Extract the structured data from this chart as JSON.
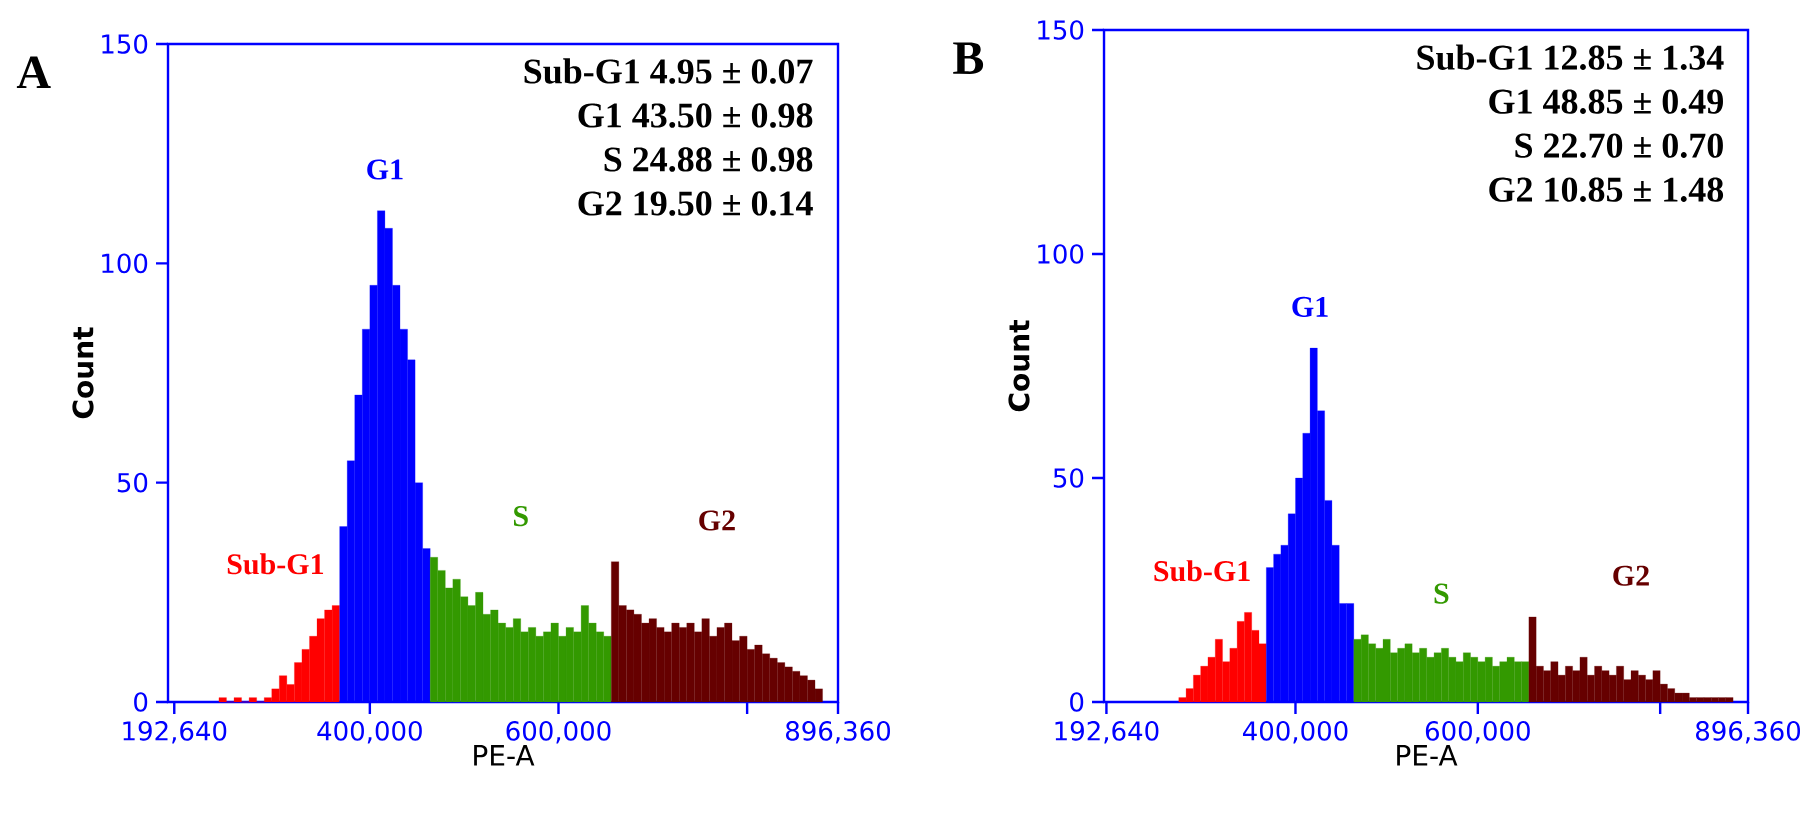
{
  "chart_data": [
    {
      "type": "histogram",
      "title": "A",
      "xlabel": "PE-A",
      "ylabel": "Count",
      "xlim": [
        186000,
        896360
      ],
      "xticks": [
        {
          "value": 192640,
          "label": "192,640"
        },
        {
          "value": 400000,
          "label": "400,000"
        },
        {
          "value": 600000,
          "label": "600,000"
        },
        {
          "value": 800000,
          "label": null
        },
        {
          "value": 896360,
          "label": "896,360"
        }
      ],
      "ylim": [
        0,
        150
      ],
      "yticks": [
        {
          "value": 0,
          "label": "0"
        },
        {
          "value": 50,
          "label": "50"
        },
        {
          "value": 100,
          "label": "100"
        },
        {
          "value": 150,
          "label": "150"
        }
      ],
      "annotations": [
        "Sub-G1",
        "G1",
        "S",
        "G2",
        "Sub-G1 4.95 ± 0.07",
        "G1 43.50 ± 0.98",
        "S 24.88 ± 0.98",
        "G2 19.50 ± 0.14"
      ],
      "bins": [
        240000,
        248000,
        256000,
        264000,
        272000,
        280000,
        288000,
        296000,
        304000,
        312000,
        320000,
        328000,
        336000,
        344000,
        352000,
        360000,
        368000,
        376000,
        384000,
        392000,
        400000,
        408000,
        416000,
        424000,
        432000,
        440000,
        448000,
        456000,
        464000,
        472000,
        480000,
        488000,
        496000,
        504000,
        512000,
        520000,
        528000,
        536000,
        544000,
        552000,
        560000,
        568000,
        576000,
        584000,
        592000,
        600000,
        608000,
        616000,
        624000,
        632000,
        640000,
        648000,
        656000,
        664000,
        672000,
        680000,
        688000,
        696000,
        704000,
        712000,
        720000,
        728000,
        736000,
        744000,
        752000,
        760000,
        768000,
        776000,
        784000,
        792000,
        800000,
        808000,
        816000,
        824000,
        832000,
        840000,
        848000,
        856000,
        864000,
        872000,
        880000
      ],
      "values": [
        1,
        0,
        1,
        0,
        1,
        0,
        1,
        3,
        6,
        4,
        9,
        12,
        15,
        19,
        21,
        22,
        40,
        55,
        70,
        85,
        95,
        112,
        108,
        95,
        85,
        78,
        50,
        35,
        33,
        30,
        26,
        28,
        24,
        22,
        25,
        20,
        21,
        18,
        17,
        19,
        16,
        17,
        15,
        16,
        18,
        15,
        17,
        16,
        22,
        18,
        16,
        15,
        32,
        22,
        21,
        20,
        18,
        19,
        17,
        16,
        18,
        17,
        18,
        16,
        19,
        15,
        17,
        18,
        14,
        15,
        12,
        13,
        11,
        10,
        9,
        8,
        7,
        6,
        5,
        3
      ],
      "colors": [
        "#ff0000",
        "#ff0000",
        "#ff0000",
        "#ff0000",
        "#ff0000",
        "#ff0000",
        "#ff0000",
        "#ff0000",
        "#ff0000",
        "#ff0000",
        "#ff0000",
        "#ff0000",
        "#ff0000",
        "#ff0000",
        "#ff0000",
        "#ff0000",
        "#0000ff",
        "#0000ff",
        "#0000ff",
        "#0000ff",
        "#0000ff",
        "#0000ff",
        "#0000ff",
        "#0000ff",
        "#0000ff",
        "#0000ff",
        "#0000ff",
        "#0000ff",
        "#339900",
        "#339900",
        "#339900",
        "#339900",
        "#339900",
        "#339900",
        "#339900",
        "#339900",
        "#339900",
        "#339900",
        "#339900",
        "#339900",
        "#339900",
        "#339900",
        "#339900",
        "#339900",
        "#339900",
        "#339900",
        "#339900",
        "#339900",
        "#339900",
        "#339900",
        "#339900",
        "#339900",
        "#660000",
        "#660000",
        "#660000",
        "#660000",
        "#660000",
        "#660000",
        "#660000",
        "#660000",
        "#660000",
        "#660000",
        "#660000",
        "#660000",
        "#660000",
        "#660000",
        "#660000",
        "#660000",
        "#660000",
        "#660000",
        "#660000",
        "#660000",
        "#660000",
        "#660000",
        "#660000",
        "#660000",
        "#660000",
        "#660000",
        "#660000",
        "#660000"
      ]
    },
    {
      "type": "histogram",
      "title": "B",
      "xlabel": "PE-A",
      "ylabel": "Count",
      "xlim": [
        190000,
        896360
      ],
      "xticks": [
        {
          "value": 192640,
          "label": "192,640"
        },
        {
          "value": 400000,
          "label": "400,000"
        },
        {
          "value": 600000,
          "label": "600,000"
        },
        {
          "value": 800000,
          "label": null
        },
        {
          "value": 896360,
          "label": "896,360"
        }
      ],
      "ylim": [
        0,
        150
      ],
      "yticks": [
        {
          "value": 0,
          "label": "0"
        },
        {
          "value": 50,
          "label": "50"
        },
        {
          "value": 100,
          "label": "100"
        },
        {
          "value": 150,
          "label": "150"
        }
      ],
      "annotations": [
        "Sub-G1",
        "G1",
        "S",
        "G2",
        "Sub-G1 12.85 ± 1.34",
        "G1 48.85 ± 0.49",
        "S 22.70 ± 0.70",
        "G2 10.85 ± 1.48"
      ],
      "bins": [
        272000,
        280000,
        288000,
        296000,
        304000,
        312000,
        320000,
        328000,
        336000,
        344000,
        352000,
        360000,
        368000,
        376000,
        384000,
        392000,
        400000,
        408000,
        416000,
        424000,
        432000,
        440000,
        448000,
        456000,
        464000,
        472000,
        480000,
        488000,
        496000,
        504000,
        512000,
        520000,
        528000,
        536000,
        544000,
        552000,
        560000,
        568000,
        576000,
        584000,
        592000,
        600000,
        608000,
        616000,
        624000,
        632000,
        640000,
        648000,
        656000,
        664000,
        672000,
        680000,
        688000,
        696000,
        704000,
        712000,
        720000,
        728000,
        736000,
        744000,
        752000,
        760000,
        768000,
        776000,
        784000,
        792000,
        800000,
        808000,
        816000,
        824000,
        832000,
        840000,
        848000,
        856000,
        864000,
        872000,
        880000
      ],
      "values": [
        1,
        3,
        6,
        8,
        10,
        14,
        9,
        12,
        18,
        20,
        16,
        13,
        30,
        33,
        35,
        42,
        50,
        60,
        79,
        65,
        45,
        35,
        22,
        22,
        14,
        15,
        13,
        12,
        14,
        11,
        12,
        13,
        11,
        12,
        10,
        11,
        12,
        10,
        9,
        11,
        10,
        9,
        10,
        8,
        9,
        10,
        9,
        9,
        19,
        8,
        7,
        9,
        6,
        8,
        7,
        10,
        6,
        8,
        7,
        6,
        8,
        5,
        7,
        6,
        5,
        7,
        4,
        3,
        2,
        2,
        1,
        1,
        1,
        1,
        1,
        1
      ],
      "colors": [
        "#ff0000",
        "#ff0000",
        "#ff0000",
        "#ff0000",
        "#ff0000",
        "#ff0000",
        "#ff0000",
        "#ff0000",
        "#ff0000",
        "#ff0000",
        "#ff0000",
        "#ff0000",
        "#0000ff",
        "#0000ff",
        "#0000ff",
        "#0000ff",
        "#0000ff",
        "#0000ff",
        "#0000ff",
        "#0000ff",
        "#0000ff",
        "#0000ff",
        "#0000ff",
        "#0000ff",
        "#339900",
        "#339900",
        "#339900",
        "#339900",
        "#339900",
        "#339900",
        "#339900",
        "#339900",
        "#339900",
        "#339900",
        "#339900",
        "#339900",
        "#339900",
        "#339900",
        "#339900",
        "#339900",
        "#339900",
        "#339900",
        "#339900",
        "#339900",
        "#339900",
        "#339900",
        "#339900",
        "#339900",
        "#660000",
        "#660000",
        "#660000",
        "#660000",
        "#660000",
        "#660000",
        "#660000",
        "#660000",
        "#660000",
        "#660000",
        "#660000",
        "#660000",
        "#660000",
        "#660000",
        "#660000",
        "#660000",
        "#660000",
        "#660000",
        "#660000",
        "#660000",
        "#660000",
        "#660000",
        "#660000",
        "#660000",
        "#660000",
        "#660000",
        "#660000",
        "#660000"
      ]
    }
  ]
}
